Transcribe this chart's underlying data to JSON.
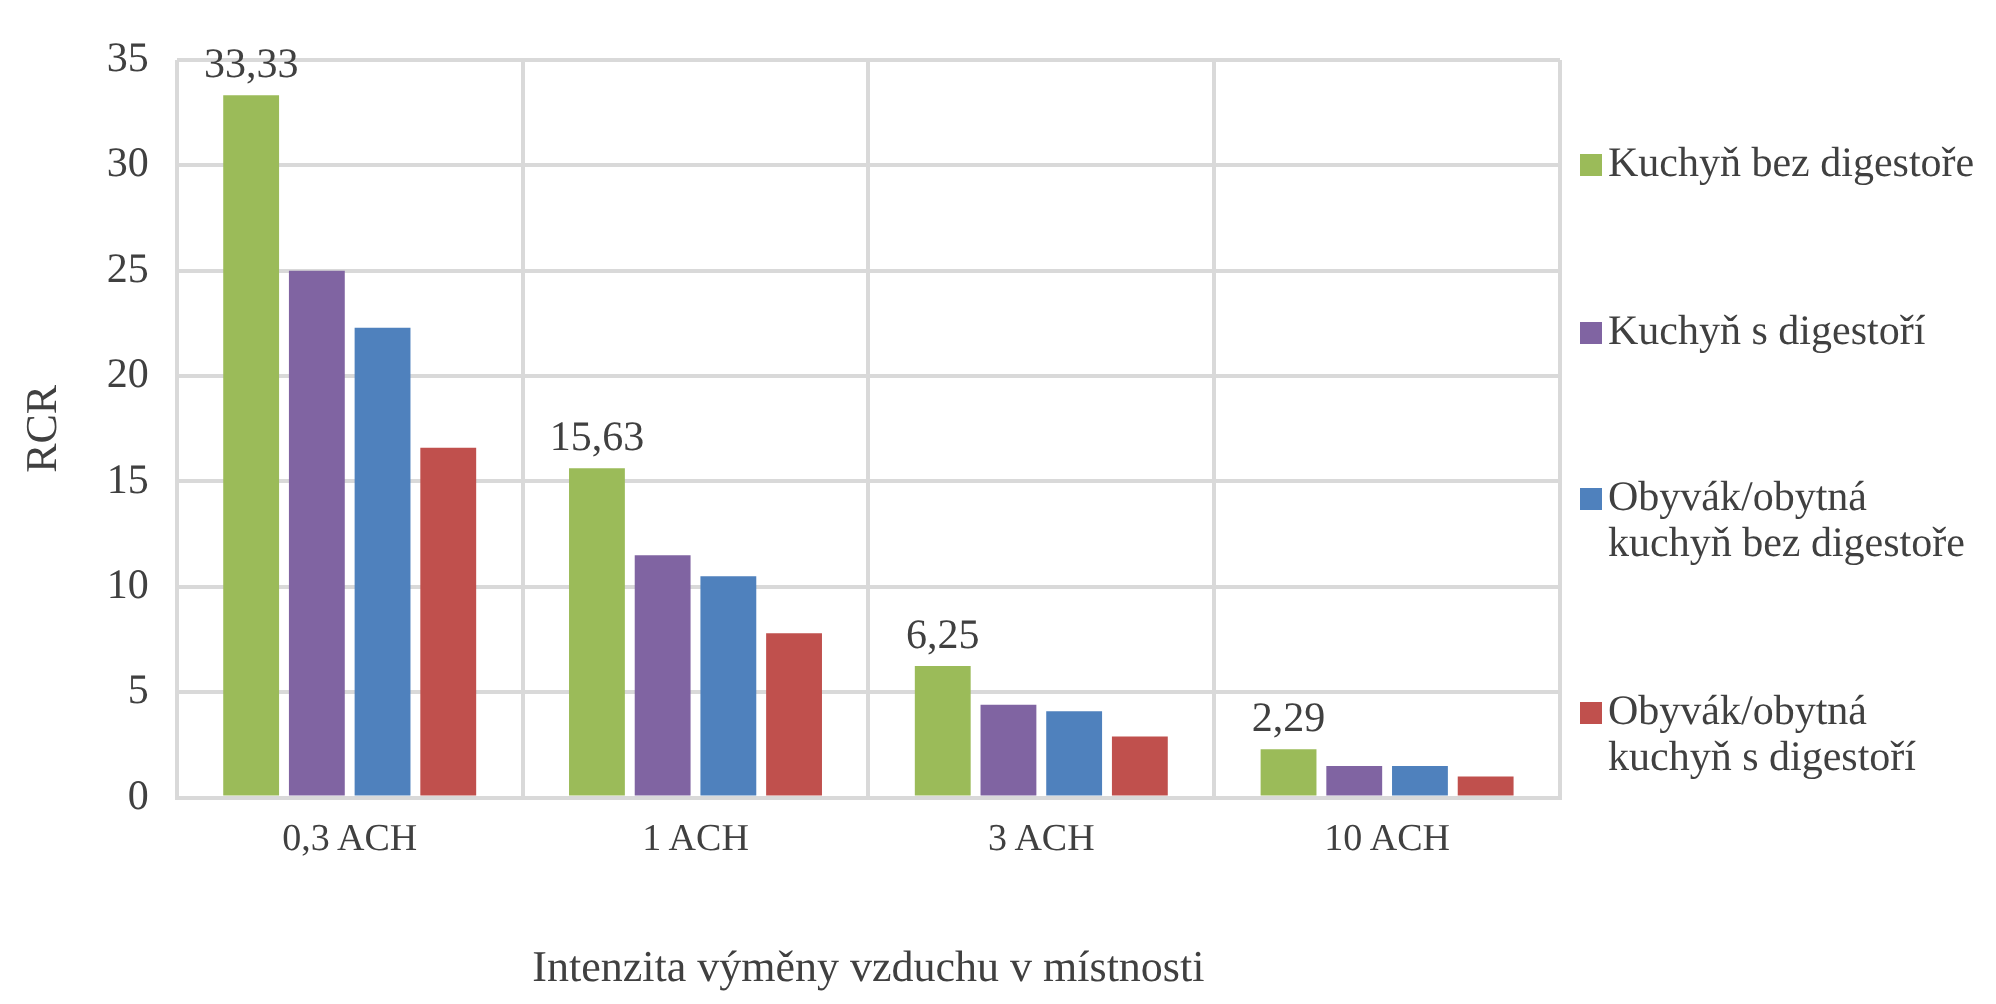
{
  "chart_data": {
    "type": "bar",
    "xlabel": "Intenzita výměny vzduchu v místnosti",
    "ylabel": "RCR",
    "categories": [
      "0,3 ACH",
      "1 ACH",
      "3 ACH",
      "10 ACH"
    ],
    "series": [
      {
        "name": "Kuchyň bez digestoře",
        "color": "#9bbb59",
        "values": [
          33.33,
          15.63,
          6.25,
          2.29
        ],
        "value_labels": [
          "33,33",
          "15,63",
          "6,25",
          "2,29"
        ]
      },
      {
        "name": "Kuchyň s digestoří",
        "color": "#8064a2",
        "values": [
          25.0,
          11.5,
          4.4,
          1.5
        ]
      },
      {
        "name": "Obyvák/obytná kuchyň bez digestoře",
        "color": "#4f81bd",
        "values": [
          22.3,
          10.5,
          4.1,
          1.5
        ]
      },
      {
        "name": "Obyvák/obytná kuchyň s digestoří",
        "color": "#c0504d",
        "values": [
          16.6,
          7.8,
          2.9,
          1.0
        ]
      }
    ],
    "ylim": [
      0,
      35
    ],
    "yticks": [
      0,
      5,
      10,
      15,
      20,
      25,
      30,
      35
    ],
    "grid": true,
    "legend": "right"
  }
}
